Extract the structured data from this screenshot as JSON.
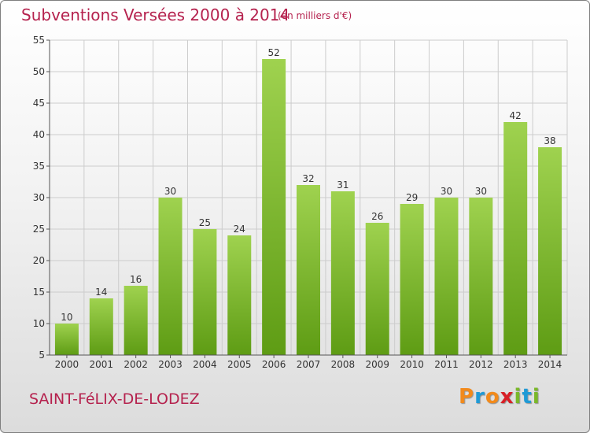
{
  "header": {
    "title": "Subventions Versées 2000 à 2014",
    "subtitle": "(en milliers d'€)"
  },
  "footer": {
    "commune": "SAINT-FéLIX-DE-LODEZ",
    "logo": "Proxiti"
  },
  "colors": {
    "title": "#b5224e",
    "bar_light": "#9fd24f",
    "bar_dark": "#5e9c14",
    "grid": "#cccccc",
    "logo_letters": [
      "#f28a1b",
      "#1f9ad6",
      "#f28a1b",
      "#d81f26",
      "#7ab829",
      "#1f9ad6",
      "#7ab829"
    ]
  },
  "chart_data": {
    "type": "bar",
    "categories": [
      "2000",
      "2001",
      "2002",
      "2003",
      "2004",
      "2005",
      "2006",
      "2007",
      "2008",
      "2009",
      "2010",
      "2011",
      "2012",
      "2013",
      "2014"
    ],
    "values": [
      10,
      14,
      16,
      30,
      25,
      24,
      52,
      32,
      31,
      26,
      29,
      30,
      30,
      42,
      38
    ],
    "data_labels": [
      "10",
      "14",
      "16",
      "30",
      "25",
      "24",
      "52",
      "32",
      "31",
      "26",
      "29",
      "30",
      "30",
      "42",
      "38"
    ],
    "title": "Subventions Versées 2000 à 2014",
    "xlabel": "",
    "ylabel": "",
    "ylim": [
      5,
      55
    ],
    "yticks": [
      5,
      10,
      15,
      20,
      25,
      30,
      35,
      40,
      45,
      50,
      55
    ],
    "grid": true,
    "legend": "none"
  }
}
